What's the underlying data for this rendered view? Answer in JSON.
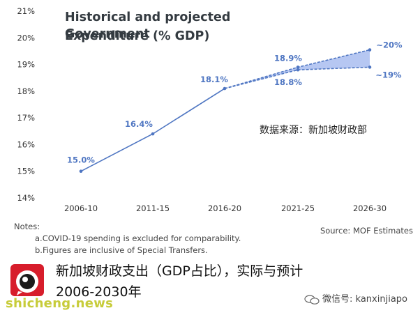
{
  "chart_data": {
    "type": "line",
    "title_line1": "Historical and projected Government",
    "title_line2": "Expenditure (% GDP)",
    "categories": [
      "2006-10",
      "2011-15",
      "2016-20",
      "2021-25",
      "2026-30"
    ],
    "ylim": [
      14,
      21
    ],
    "yticks": [
      "14%",
      "15%",
      "16%",
      "17%",
      "18%",
      "19%",
      "20%",
      "21%"
    ],
    "grid": false,
    "series": [
      {
        "values": [
          15.0,
          16.4,
          18.1,
          null,
          null
        ]
      },
      {
        "values": [
          null,
          null,
          18.1,
          18.9,
          19.55
        ]
      },
      {
        "values": [
          null,
          null,
          18.1,
          18.8,
          18.9
        ]
      }
    ],
    "data_labels": [
      {
        "text": "15.0%",
        "category": "2006-10",
        "value": 15.0
      },
      {
        "text": "16.4%",
        "category": "2011-15",
        "value": 16.4
      },
      {
        "text": "18.1%",
        "category": "2016-20",
        "value": 18.1
      },
      {
        "text": "18.9%",
        "category": "2021-25",
        "value": 18.9
      },
      {
        "text": "18.8%",
        "category": "2021-25",
        "value": 18.8
      },
      {
        "text": "~20%",
        "category": "2026-30",
        "value": 19.55
      },
      {
        "text": "~19%",
        "category": "2026-30",
        "value": 18.9
      }
    ],
    "colors": {
      "line": "#4f76c2",
      "fill": "#a9bdf0",
      "label": "#4f76c2",
      "axis_text": "#333333"
    }
  },
  "source_cn": "数据来源：新加坡财政部",
  "notes": {
    "heading": "Notes:",
    "a": "a.COVID-19 spending is excluded for comparability.",
    "b": "b.Figures are inclusive of Special Transfers."
  },
  "source_en": "Source: MOF Estimates",
  "caption_line1": "新加坡财政支出（GDP占比），实际与预计",
  "caption_line2": "2006-2030年",
  "watermark": "shicheng.news",
  "wechat_id": "微信号: kanxinjiapo",
  "icons": {
    "logo": "shicheng-logo-icon",
    "wechat": "wechat-icon"
  }
}
